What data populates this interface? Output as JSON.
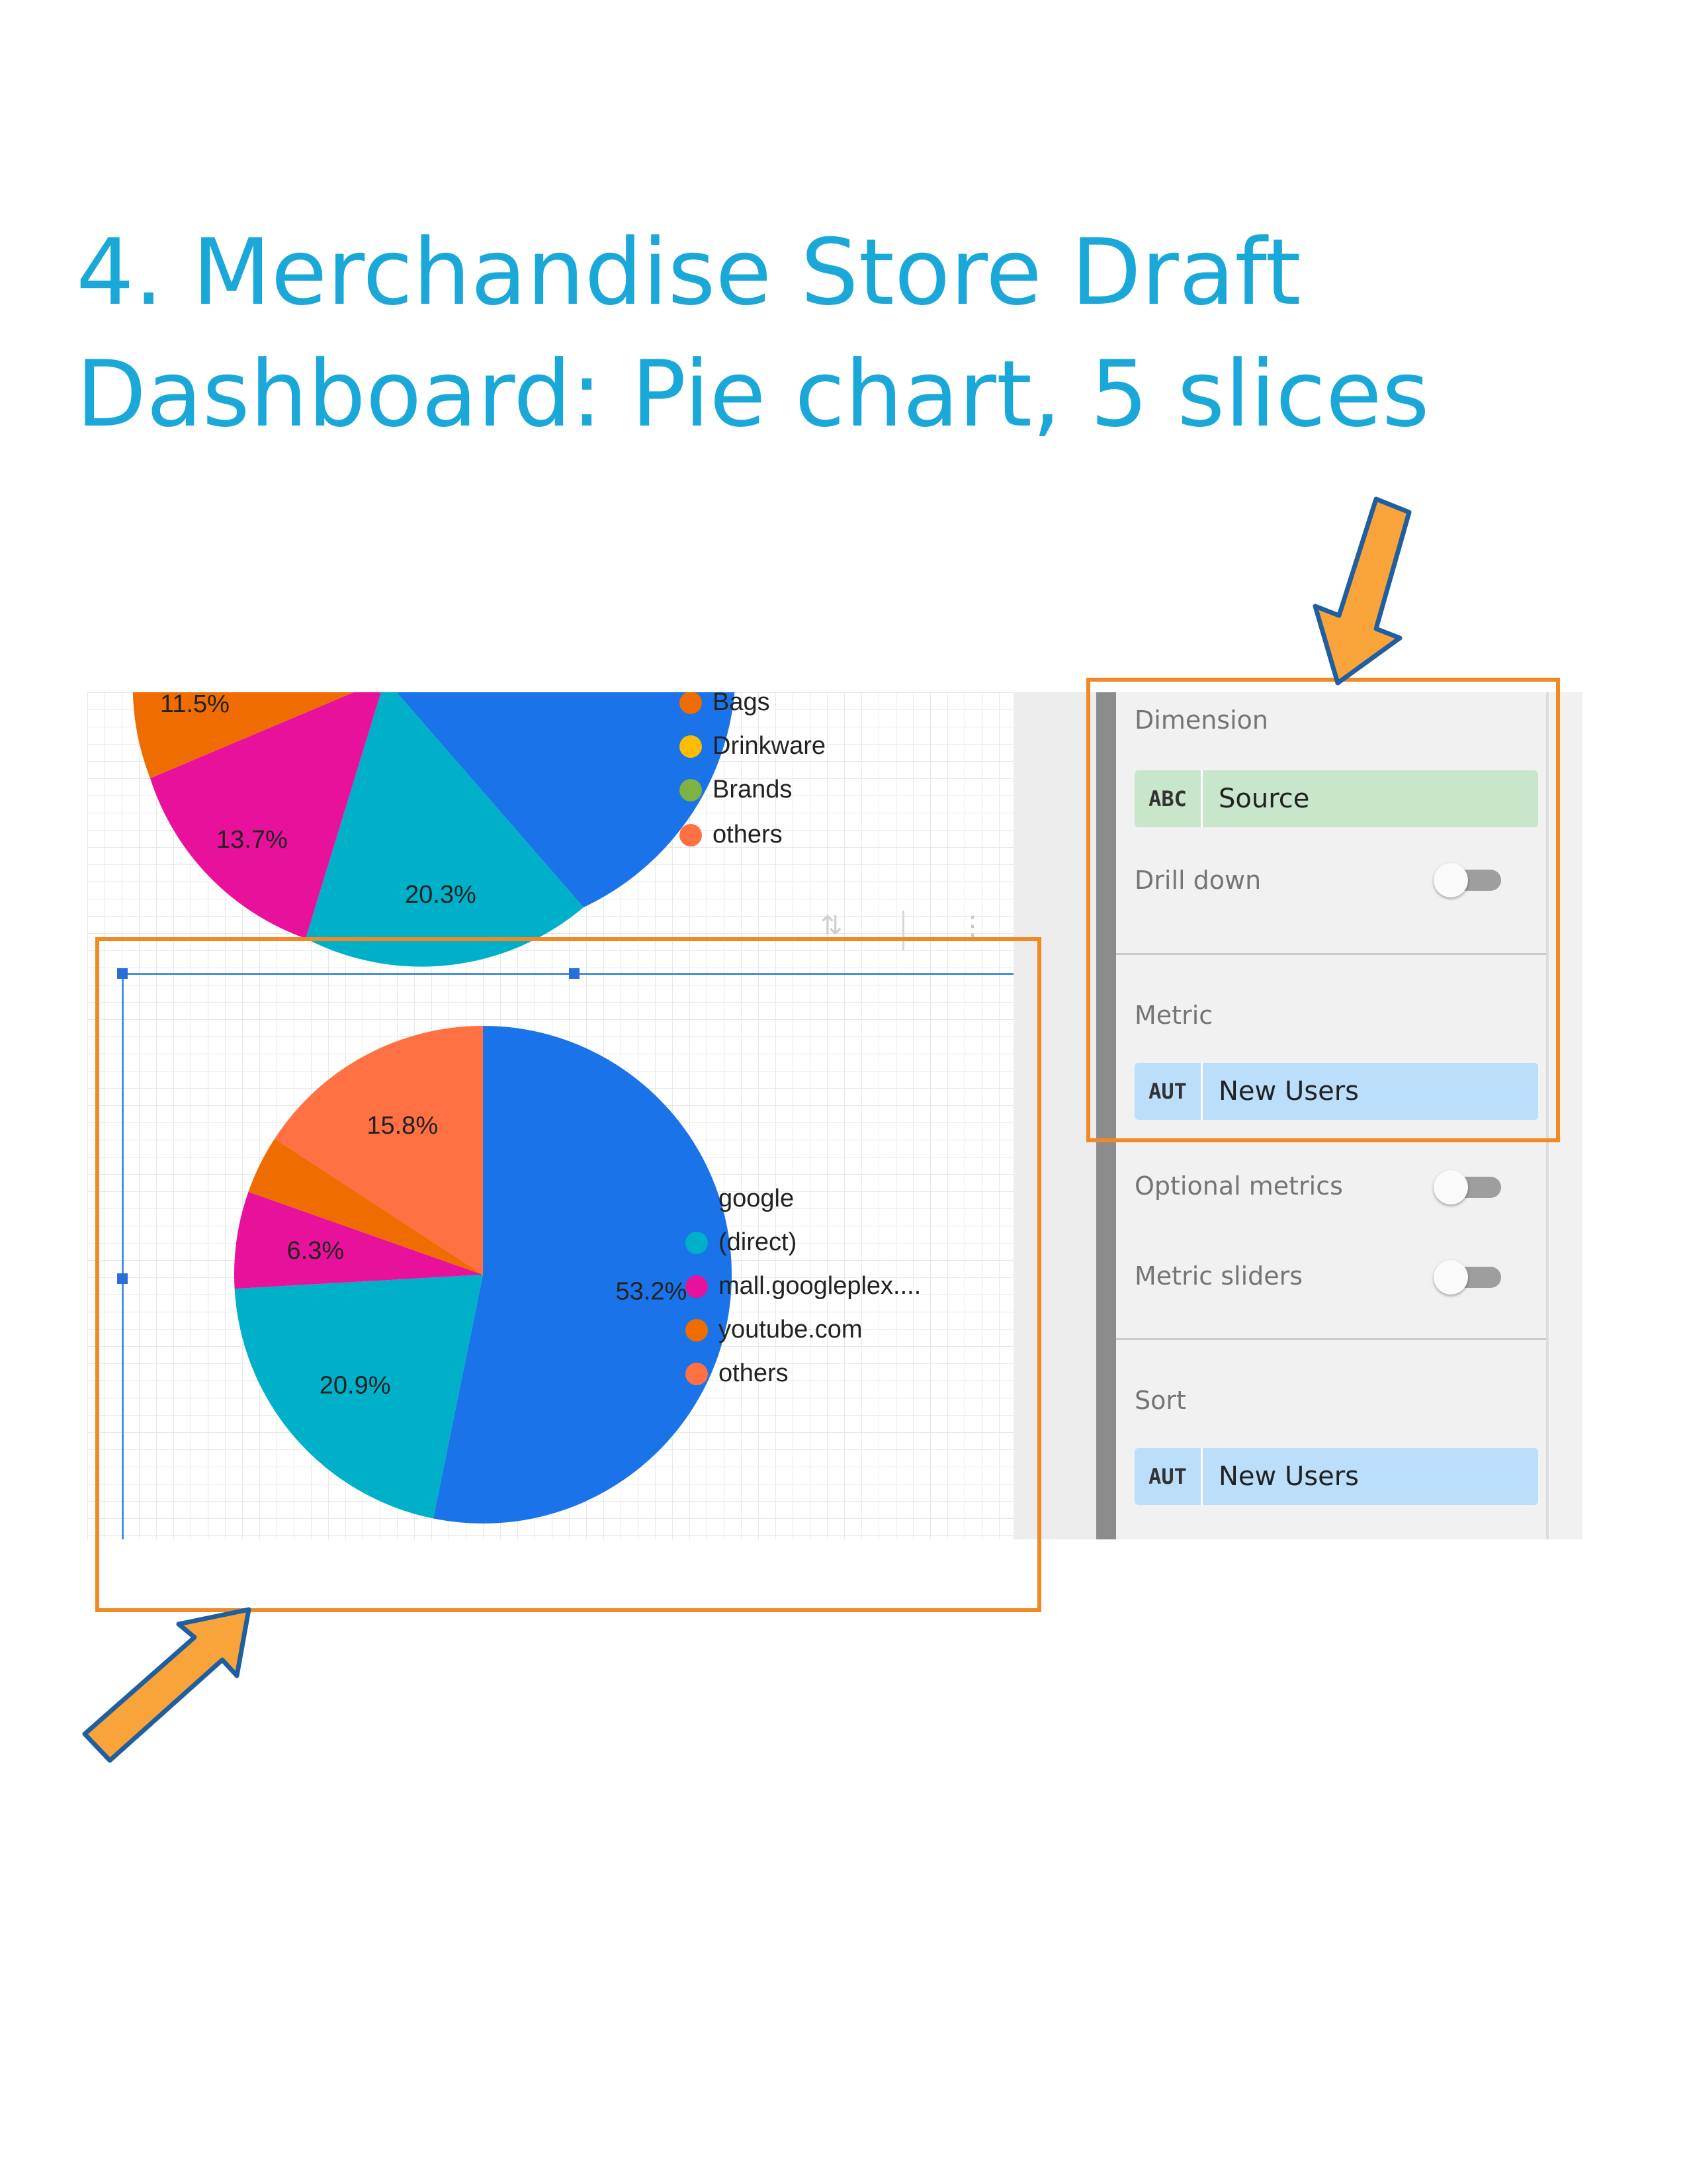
{
  "heading": {
    "line1": "4. Merchandise Store Draft",
    "line2": "Dashboard: Pie chart, 5 slices"
  },
  "top_chart": {
    "legend": [
      {
        "label": "Bags",
        "color": "#ef6c00"
      },
      {
        "label": "Drinkware",
        "color": "#fbbc04"
      },
      {
        "label": "Brands",
        "color": "#7cb342"
      },
      {
        "label": "others",
        "color": "#ff7043"
      }
    ],
    "labels": [
      "11.5%",
      "13.7%",
      "20.3%"
    ]
  },
  "chart_data": {
    "type": "pie",
    "slices": [
      {
        "name": "google",
        "value": 53.2,
        "label": "53.2%",
        "color": "#1a73e8"
      },
      {
        "name": "(direct)",
        "value": 20.9,
        "label": "20.9%",
        "color": "#00b0c8"
      },
      {
        "name": "mall.googleplex....",
        "value": 6.3,
        "label": "6.3%",
        "color": "#e8119b"
      },
      {
        "name": "youtube.com",
        "value": 3.8,
        "label": "",
        "color": "#ef6c00"
      },
      {
        "name": "others",
        "value": 15.8,
        "label": "15.8%",
        "color": "#ff7043"
      }
    ],
    "legend_position": "right"
  },
  "panel": {
    "dimension_label": "Dimension",
    "dimension_chip": {
      "type": "ABC",
      "name": "Source"
    },
    "drilldown_label": "Drill down",
    "metric_label": "Metric",
    "metric_chip": {
      "type": "AUT",
      "name": "New Users"
    },
    "optional_metrics_label": "Optional metrics",
    "metric_sliders_label": "Metric sliders",
    "sort_label": "Sort",
    "sort_chip": {
      "type": "AUT",
      "name": "New Users"
    }
  },
  "colors": {
    "accent": "#f08a24",
    "heading": "#1aa8d8",
    "arrow": "#f9a43a"
  }
}
